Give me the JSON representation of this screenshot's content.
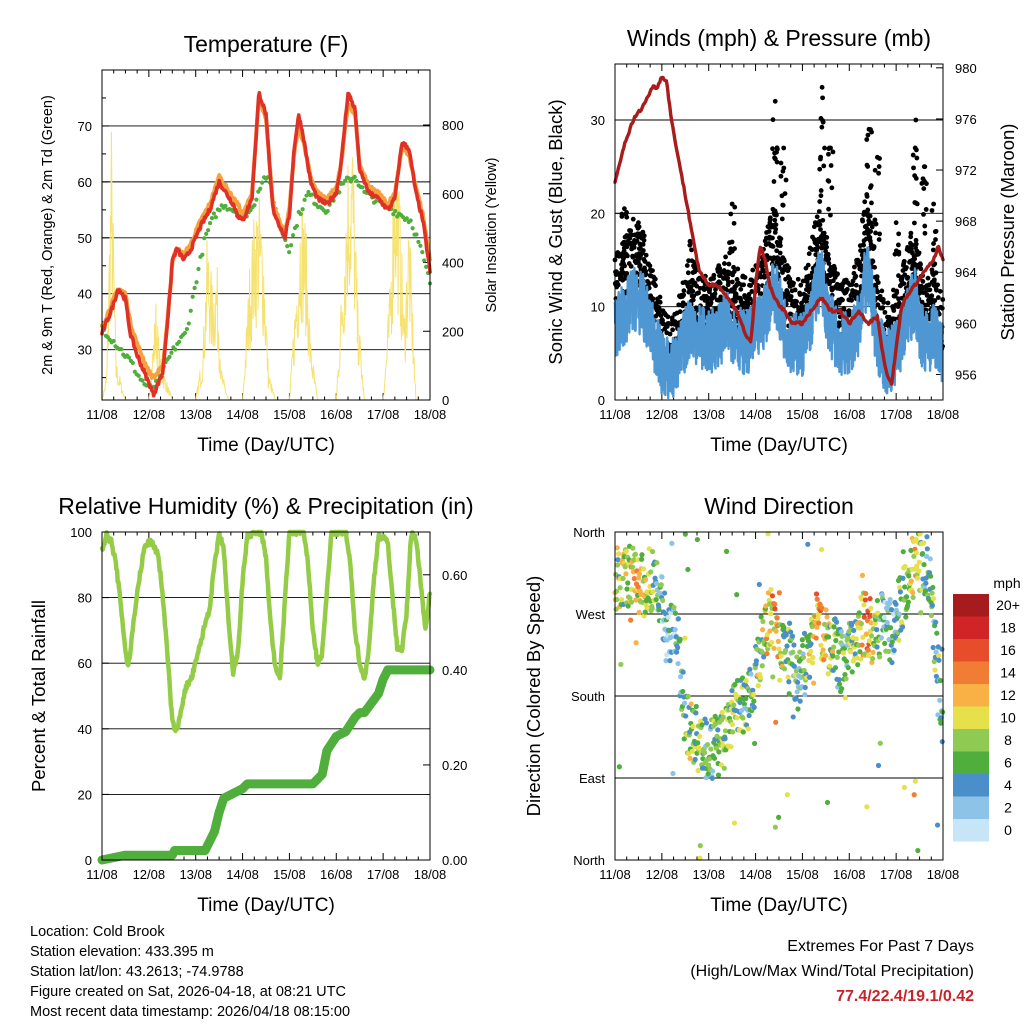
{
  "info": {
    "location": "Location: Cold Brook",
    "elevation": "Station elevation: 433.395 m",
    "latlon": "Station lat/lon: 43.2613; -74.9788",
    "created": "Figure created on Sat, 2026-04-18, at 08:21 UTC",
    "recent": "Most recent data timestamp: 2026/04/18 08:15:00"
  },
  "extremes": {
    "title": "Extremes For Past 7 Days",
    "subtitle": "(High/Low/Max Wind/Total Precipitation)",
    "values": "77.4/22.4/19.1/0.42"
  },
  "colors": {
    "temp2m": "#e03127",
    "temp9m": "#f5a13f",
    "dewpoint": "#4fae3c",
    "solar": "#f6e270",
    "wind": "#4f97d3",
    "gust": "#000000",
    "pressure": "#a81c1c",
    "rh": "#94cc48",
    "precip": "#4fae3c",
    "speed_scale": [
      "#c6e6f8",
      "#8ec3e8",
      "#4a8fc9",
      "#4fae3c",
      "#8fca52",
      "#e6e04a",
      "#f9b146",
      "#f07d33",
      "#e84d2b",
      "#d02427",
      "#a51b1e"
    ]
  },
  "chart_data": [
    {
      "id": "temperature",
      "type": "line",
      "title": "Temperature (F)",
      "xlabel": "Time (Day/UTC)",
      "ylabel": "2m & 9m T (Red, Orange) & 2m Td (Green)",
      "y2label": "Solar Insolation (Yellow)",
      "xlim": [
        0,
        7
      ],
      "ylim": [
        21,
        80
      ],
      "y2lim": [
        0,
        960
      ],
      "xticks": [
        "11/08",
        "12/08",
        "13/08",
        "14/08",
        "15/08",
        "16/08",
        "17/08",
        "18/08"
      ],
      "yticks": [
        30,
        40,
        50,
        60,
        70
      ],
      "y2ticks": [
        0,
        200,
        400,
        600,
        800
      ],
      "series": [
        {
          "name": "2m T",
          "x": [
            0,
            0.2,
            0.35,
            0.5,
            0.6,
            0.75,
            0.9,
            1.0,
            1.1,
            1.3,
            1.45,
            1.5,
            1.6,
            1.75,
            1.9,
            2.1,
            2.3,
            2.5,
            2.65,
            2.8,
            2.9,
            3.0,
            3.2,
            3.35,
            3.5,
            3.6,
            3.65,
            3.75,
            3.9,
            4.0,
            4.1,
            4.2,
            4.3,
            4.45,
            4.6,
            4.8,
            5.0,
            5.1,
            5.25,
            5.4,
            5.5,
            5.7,
            5.9,
            6.0,
            6.1,
            6.25,
            6.4,
            6.55,
            6.7,
            6.85,
            7.0
          ],
          "y": [
            33,
            37,
            41,
            39,
            33,
            29,
            26,
            24,
            22,
            26,
            40,
            46,
            48,
            46,
            48,
            52,
            55,
            60,
            58,
            56,
            54,
            53,
            57,
            76,
            72,
            60,
            55,
            53,
            50,
            54,
            66,
            72,
            68,
            60,
            57,
            56,
            58,
            63,
            76,
            73,
            62,
            58,
            57,
            56,
            55,
            57,
            67,
            66,
            58,
            53,
            44
          ]
        },
        {
          "name": "9m T",
          "x": [
            0,
            0.2,
            0.35,
            0.5,
            0.6,
            0.75,
            0.9,
            1.0,
            1.1,
            1.3,
            1.45,
            1.5,
            1.6,
            1.75,
            1.9,
            2.1,
            2.3,
            2.5,
            2.65,
            2.8,
            2.9,
            3.0,
            3.2,
            3.35,
            3.5,
            3.6,
            3.65,
            3.75,
            3.9,
            4.0,
            4.1,
            4.2,
            4.3,
            4.45,
            4.6,
            4.8,
            5.0,
            5.1,
            5.25,
            5.4,
            5.5,
            5.7,
            5.9,
            6.0,
            6.1,
            6.25,
            6.4,
            6.55,
            6.7,
            6.85,
            7.0
          ],
          "y": [
            34,
            38,
            41,
            40,
            35,
            31,
            28,
            26,
            25,
            27,
            40,
            46,
            48,
            47,
            49,
            53,
            56,
            61,
            59,
            57,
            56,
            54,
            58,
            75,
            71,
            61,
            56,
            54,
            51,
            55,
            65,
            70,
            67,
            61,
            58,
            57,
            59,
            63,
            74,
            72,
            63,
            59,
            58,
            57,
            56,
            58,
            66,
            65,
            59,
            54,
            46
          ]
        },
        {
          "name": "2m Td",
          "x": [
            0,
            0.2,
            0.4,
            0.6,
            0.8,
            1.0,
            1.2,
            1.4,
            1.6,
            1.8,
            2.0,
            2.2,
            2.4,
            2.6,
            2.8,
            3.0,
            3.2,
            3.4,
            3.5,
            3.6,
            3.8,
            4.0,
            4.2,
            4.4,
            4.6,
            4.8,
            5.0,
            5.2,
            5.4,
            5.6,
            5.8,
            6.0,
            6.2,
            6.4,
            6.6,
            6.8,
            7.0
          ],
          "y": [
            34,
            32,
            30,
            28,
            25,
            23,
            24,
            28,
            31,
            33,
            42,
            50,
            54,
            56,
            55,
            54,
            55,
            60,
            61,
            59,
            52,
            48,
            54,
            58,
            56,
            55,
            58,
            60,
            61,
            58,
            57,
            56,
            55,
            54,
            53,
            48,
            42
          ]
        },
        {
          "name": "Solar",
          "axis": "y2",
          "x": [
            0,
            0.1,
            0.2,
            0.3,
            0.5,
            0.8,
            1.0,
            1.15,
            1.25,
            1.5,
            1.7,
            2.0,
            2.15,
            2.25,
            2.35,
            2.45,
            2.55,
            2.7,
            2.9,
            3.0,
            3.15,
            3.25,
            3.35,
            3.45,
            3.55,
            3.7,
            4.0,
            4.15,
            4.25,
            4.35,
            4.45,
            4.6,
            4.8,
            5.0,
            5.15,
            5.25,
            5.35,
            5.45,
            5.6,
            6.0,
            6.15,
            6.25,
            6.35,
            6.45,
            6.55,
            6.7,
            7.0
          ],
          "y": [
            0,
            80,
            820,
            120,
            0,
            0,
            0,
            300,
            120,
            0,
            0,
            0,
            150,
            500,
            350,
            420,
            90,
            0,
            0,
            0,
            400,
            560,
            620,
            480,
            90,
            0,
            0,
            380,
            650,
            520,
            180,
            0,
            0,
            0,
            450,
            760,
            820,
            310,
            0,
            0,
            350,
            860,
            620,
            240,
            580,
            0,
            0
          ]
        }
      ]
    },
    {
      "id": "winds",
      "type": "scatter",
      "title": "Winds (mph) & Pressure (mb)",
      "xlabel": "Time (Day/UTC)",
      "ylabel": "Sonic Wind & Gust (Blue, Black)",
      "y2label": "Station Pressure (Maroon)",
      "xlim": [
        0,
        7
      ],
      "ylim": [
        0,
        36
      ],
      "y2lim": [
        954,
        980.3
      ],
      "xticks": [
        "11/08",
        "12/08",
        "13/08",
        "14/08",
        "15/08",
        "16/08",
        "17/08",
        "18/08"
      ],
      "yticks": [
        0,
        10,
        20,
        30
      ],
      "y2ticks": [
        956,
        960,
        964,
        968,
        972,
        976,
        980
      ],
      "wind_mean_profile": {
        "x": [
          0,
          0.2,
          0.4,
          0.6,
          0.8,
          1.0,
          1.2,
          1.4,
          1.6,
          1.8,
          2.0,
          2.2,
          2.4,
          2.6,
          2.8,
          3.0,
          3.2,
          3.3,
          3.4,
          3.5,
          3.6,
          3.8,
          4.0,
          4.2,
          4.3,
          4.4,
          4.5,
          4.6,
          4.8,
          5.0,
          5.2,
          5.3,
          5.4,
          5.5,
          5.6,
          5.8,
          6.0,
          6.2,
          6.4,
          6.5,
          6.6,
          6.8,
          7.0
        ],
        "y": [
          8,
          9,
          11,
          10,
          7,
          4,
          3,
          5,
          8,
          7,
          6,
          7,
          8,
          7,
          6,
          7,
          9,
          11,
          12,
          10,
          8,
          6,
          6,
          9,
          12,
          13,
          10,
          8,
          6,
          6,
          8,
          12,
          13,
          10,
          6,
          4,
          5,
          8,
          11,
          8,
          6,
          7,
          5
        ]
      },
      "gust_peaks": [
        [
          0.2,
          20.5
        ],
        [
          0.5,
          19
        ],
        [
          1.6,
          17
        ],
        [
          2.5,
          21
        ],
        [
          3.42,
          32
        ],
        [
          3.6,
          27
        ],
        [
          4.42,
          33.5
        ],
        [
          4.6,
          27
        ],
        [
          5.42,
          29
        ],
        [
          5.6,
          26
        ],
        [
          6.0,
          19
        ],
        [
          6.42,
          30
        ],
        [
          6.6,
          25
        ],
        [
          6.8,
          21
        ]
      ],
      "series": [
        {
          "name": "Pressure",
          "axis": "y2",
          "x": [
            0,
            0.2,
            0.4,
            0.6,
            0.8,
            0.9,
            1.0,
            1.1,
            1.2,
            1.3,
            1.4,
            1.5,
            1.6,
            1.7,
            1.8,
            2.0,
            2.2,
            2.4,
            2.6,
            2.8,
            2.9,
            3.0,
            3.1,
            3.2,
            3.3,
            3.4,
            3.6,
            3.8,
            4.0,
            4.2,
            4.4,
            4.6,
            4.8,
            5.0,
            5.2,
            5.4,
            5.6,
            5.7,
            5.8,
            5.9,
            6.0,
            6.1,
            6.2,
            6.4,
            6.6,
            6.8,
            6.9,
            7.0
          ],
          "y": [
            971,
            974,
            976,
            977,
            978.5,
            978.5,
            979.3,
            979,
            976,
            974,
            972,
            970,
            968,
            966,
            964,
            963,
            963,
            962,
            961,
            959,
            958.5,
            963,
            966,
            965,
            963,
            962,
            961,
            960,
            960,
            961,
            962,
            961,
            961,
            960,
            961,
            960,
            960.5,
            958,
            956,
            955.2,
            958,
            961,
            962,
            963,
            964,
            965,
            966,
            965
          ]
        }
      ]
    },
    {
      "id": "humidity",
      "type": "line",
      "title": "Relative Humidity (%) & Precipitation (in)",
      "xlabel": "Time (Day/UTC)",
      "ylabel": "Percent & Total Rainfall",
      "xlim": [
        0,
        7
      ],
      "ylim": [
        0,
        100
      ],
      "y2lim": [
        0,
        0.69
      ],
      "xticks": [
        "11/08",
        "12/08",
        "13/08",
        "14/08",
        "15/08",
        "16/08",
        "17/08",
        "18/08"
      ],
      "yticks": [
        0,
        20,
        40,
        60,
        80,
        100
      ],
      "y2ticks": [
        "0.00",
        "0.20",
        "0.40",
        "0.60"
      ],
      "series": [
        {
          "name": "RH",
          "x": [
            0,
            0.1,
            0.2,
            0.3,
            0.4,
            0.5,
            0.55,
            0.6,
            0.7,
            0.8,
            0.9,
            1.0,
            1.1,
            1.2,
            1.3,
            1.4,
            1.5,
            1.6,
            1.7,
            1.8,
            1.9,
            2.0,
            2.1,
            2.2,
            2.3,
            2.4,
            2.5,
            2.6,
            2.7,
            2.8,
            2.9,
            3.0,
            3.1,
            3.2,
            3.3,
            3.4,
            3.5,
            3.6,
            3.7,
            3.8,
            3.9,
            4.0,
            4.1,
            4.2,
            4.3,
            4.4,
            4.5,
            4.6,
            4.7,
            4.8,
            4.9,
            5.0,
            5.1,
            5.2,
            5.3,
            5.4,
            5.5,
            5.6,
            5.7,
            5.8,
            5.9,
            6.0,
            6.1,
            6.2,
            6.3,
            6.4,
            6.5,
            6.6,
            6.7,
            6.8,
            6.9,
            7.0
          ],
          "y": [
            95,
            99,
            97,
            90,
            78,
            64,
            59,
            63,
            76,
            86,
            95,
            97,
            96,
            93,
            80,
            62,
            42,
            39,
            47,
            53,
            55,
            60,
            66,
            72,
            77,
            90,
            99,
            95,
            72,
            57,
            63,
            85,
            99,
            99,
            100,
            100,
            92,
            72,
            58,
            56,
            78,
            100,
            100,
            100,
            100,
            90,
            70,
            60,
            63,
            82,
            100,
            100,
            100,
            100,
            90,
            70,
            60,
            55,
            65,
            85,
            99,
            98,
            97,
            80,
            65,
            64,
            75,
            100,
            98,
            85,
            70,
            82
          ]
        },
        {
          "name": "Precip",
          "axis": "y2",
          "x": [
            0,
            0.5,
            1.0,
            1.5,
            1.55,
            2.2,
            2.3,
            2.4,
            2.5,
            2.6,
            3.0,
            3.1,
            3.2,
            3.3,
            3.4,
            3.5,
            4.0,
            4.5,
            4.7,
            4.8,
            5.0,
            5.2,
            5.4,
            5.5,
            5.6,
            5.9,
            6.0,
            6.1,
            6.2,
            6.5,
            7.0
          ],
          "y": [
            0,
            0.01,
            0.01,
            0.01,
            0.02,
            0.02,
            0.04,
            0.06,
            0.1,
            0.13,
            0.15,
            0.16,
            0.16,
            0.16,
            0.16,
            0.16,
            0.16,
            0.16,
            0.18,
            0.23,
            0.26,
            0.27,
            0.3,
            0.31,
            0.31,
            0.35,
            0.38,
            0.4,
            0.4,
            0.4,
            0.4
          ]
        }
      ]
    },
    {
      "id": "direction",
      "type": "scatter",
      "title": "Wind Direction",
      "xlabel": "Time (Day/UTC)",
      "ylabel": "Direction (Colored By Speed)",
      "xlim": [
        0,
        7
      ],
      "ylim": [
        0,
        360
      ],
      "xticks": [
        "11/08",
        "12/08",
        "13/08",
        "14/08",
        "15/08",
        "16/08",
        "17/08",
        "18/08"
      ],
      "yticks": [
        "North",
        "East",
        "South",
        "West",
        "North"
      ],
      "legend_title": "mph",
      "legend_labels": [
        "20+",
        "18",
        "16",
        "14",
        "12",
        "10",
        "8",
        "6",
        "4",
        "2",
        "0"
      ],
      "direction_profile": {
        "x": [
          0,
          0.3,
          0.6,
          0.8,
          1.0,
          1.1,
          1.3,
          1.5,
          1.7,
          1.9,
          2.1,
          2.3,
          2.5,
          2.7,
          2.9,
          3.1,
          3.3,
          3.5,
          3.7,
          3.9,
          4.1,
          4.3,
          4.5,
          4.7,
          4.9,
          5.1,
          5.3,
          5.5,
          5.7,
          5.9,
          6.1,
          6.3,
          6.5,
          6.7,
          6.9,
          7.0
        ],
        "y": [
          310,
          310,
          300,
          310,
          280,
          250,
          260,
          150,
          140,
          120,
          125,
          130,
          160,
          170,
          180,
          230,
          270,
          230,
          230,
          200,
          220,
          270,
          240,
          230,
          210,
          240,
          260,
          250,
          260,
          250,
          280,
          320,
          330,
          320,
          200,
          140
        ]
      }
    }
  ]
}
